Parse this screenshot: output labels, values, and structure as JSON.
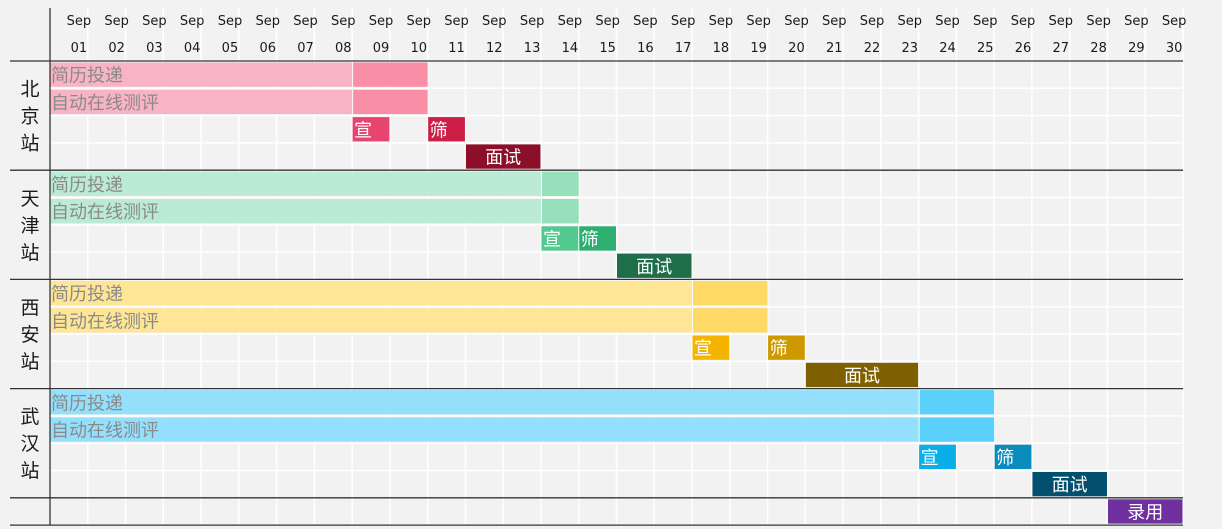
{
  "chart_data": {
    "type": "gantt",
    "month_label": "Sep",
    "days": [
      "01",
      "02",
      "03",
      "04",
      "05",
      "06",
      "07",
      "08",
      "09",
      "10",
      "11",
      "12",
      "13",
      "14",
      "15",
      "16",
      "17",
      "18",
      "19",
      "20",
      "21",
      "22",
      "23",
      "24",
      "25",
      "26",
      "27",
      "28",
      "29",
      "30"
    ],
    "groups": [
      {
        "name": "北京站",
        "tasks": [
          {
            "label": "简历投递",
            "start": 1,
            "end": 10,
            "light_until": 8,
            "color_light": "#f8b4c5",
            "color": "#f88fa6"
          },
          {
            "label": "自动在线测评",
            "start": 1,
            "end": 10,
            "light_until": 8,
            "color_light": "#f8b4c5",
            "color": "#f88fa6"
          },
          {
            "label": "宣",
            "start": 9,
            "end": 9,
            "color": "#e8456e",
            "inline": true
          },
          {
            "label": "筛",
            "start": 11,
            "end": 11,
            "color": "#cc1f47",
            "inline": true
          },
          {
            "label": "面试",
            "start": 12,
            "end": 13,
            "color": "#8c0f2a"
          }
        ]
      },
      {
        "name": "天津站",
        "tasks": [
          {
            "label": "简历投递",
            "start": 1,
            "end": 14,
            "light_until": 13,
            "color_light": "#bbebd5",
            "color": "#96e0bc"
          },
          {
            "label": "自动在线测评",
            "start": 1,
            "end": 14,
            "light_until": 13,
            "color_light": "#bbebd5",
            "color": "#96e0bc"
          },
          {
            "label": "宣",
            "start": 14,
            "end": 14,
            "color": "#52c98e",
            "inline": true
          },
          {
            "label": "筛",
            "start": 15,
            "end": 15,
            "color": "#2fae72",
            "inline": true
          },
          {
            "label": "面试",
            "start": 16,
            "end": 17,
            "color": "#1e6e4a"
          }
        ]
      },
      {
        "name": "西安站",
        "tasks": [
          {
            "label": "简历投递",
            "start": 1,
            "end": 19,
            "light_until": 17,
            "color_light": "#ffe596",
            "color": "#ffd966"
          },
          {
            "label": "自动在线测评",
            "start": 1,
            "end": 19,
            "light_until": 17,
            "color_light": "#ffe596",
            "color": "#ffd966"
          },
          {
            "label": "宣",
            "start": 18,
            "end": 18,
            "color": "#f5b400",
            "inline": true
          },
          {
            "label": "筛",
            "start": 20,
            "end": 20,
            "color": "#cc9900",
            "inline": true
          },
          {
            "label": "面试",
            "start": 21,
            "end": 23,
            "color": "#7f6000"
          }
        ]
      },
      {
        "name": "武汉站",
        "tasks": [
          {
            "label": "简历投递",
            "start": 1,
            "end": 25,
            "light_until": 23,
            "color_light": "#94e0fc",
            "color": "#5ad0fa"
          },
          {
            "label": "自动在线测评",
            "start": 1,
            "end": 25,
            "light_until": 23,
            "color_light": "#94e0fc",
            "color": "#5ad0fa"
          },
          {
            "label": "宣",
            "start": 24,
            "end": 24,
            "color": "#0aaee8",
            "inline": true
          },
          {
            "label": "筛",
            "start": 26,
            "end": 26,
            "color": "#0a8cbf",
            "inline": true
          },
          {
            "label": "面试",
            "start": 27,
            "end": 28,
            "color": "#03506e"
          }
        ]
      }
    ],
    "final_task": {
      "label": "录用",
      "start": 29,
      "end": 30,
      "color": "#7030a0"
    },
    "grid": true
  }
}
